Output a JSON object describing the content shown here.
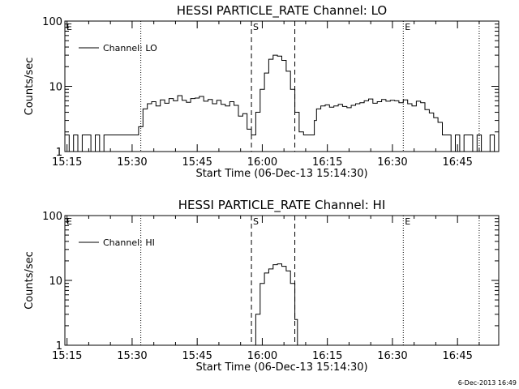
{
  "footer": {
    "timestamp": "6-Dec-2013 16:49"
  },
  "chart_data": [
    {
      "type": "line",
      "title": "HESSI PARTICLE_RATE Channel: LO",
      "xlabel": "Start Time (06-Dec-13 15:14:30)",
      "ylabel": "Counts/sec",
      "yscale": "log",
      "ylim": [
        1,
        100
      ],
      "xlim_minutes": [
        0,
        100
      ],
      "x_ticks": [
        "15:15",
        "15:30",
        "15:45",
        "16:00",
        "16:15",
        "16:30",
        "16:45"
      ],
      "y_ticks": [
        "1",
        "10",
        "100"
      ],
      "legend": "Channel: LO",
      "legend_position": "top-left",
      "markers": {
        "dashed": [
          {
            "label": "S",
            "x": "15:57:30"
          },
          {
            "label": "",
            "x": "16:07:30"
          }
        ],
        "dotted": [
          {
            "label": "",
            "x": "15:32:00"
          },
          {
            "label": "E",
            "x": "16:32:30"
          },
          {
            "label": "",
            "x": "16:50:00"
          }
        ],
        "edge_label": "E"
      },
      "series": [
        {
          "name": "Channel: LO",
          "x_minutes": [
            0,
            1,
            2,
            3,
            4,
            5,
            6,
            7,
            8,
            9,
            10,
            11,
            12,
            13,
            14,
            15,
            16,
            17,
            18,
            19,
            20,
            21,
            22,
            23,
            24,
            25,
            26,
            27,
            28,
            29,
            30,
            31,
            32,
            33,
            34,
            35,
            36,
            37,
            38,
            39,
            40,
            41,
            42,
            43,
            43.5,
            44,
            45,
            46,
            47,
            48,
            49,
            50,
            51,
            52,
            53,
            54,
            55,
            56,
            57,
            57.5,
            58,
            59,
            60,
            61,
            62,
            63,
            64,
            65,
            66,
            67,
            68,
            69,
            70,
            71,
            72,
            73,
            74,
            75,
            76,
            77,
            78,
            79,
            80,
            81,
            82,
            83,
            84,
            85,
            86,
            87,
            88,
            89,
            90,
            91,
            92,
            93,
            94,
            95,
            96,
            97,
            98,
            99,
            100
          ],
          "values": [
            1.8,
            1,
            1.8,
            1,
            1.8,
            1.8,
            1,
            1.8,
            1,
            1.8,
            1.8,
            1.8,
            1.8,
            1.8,
            1.8,
            1.8,
            1.8,
            2.4,
            4.5,
            5.4,
            5.8,
            5.0,
            6.2,
            5.5,
            6.5,
            6.0,
            7.2,
            6.1,
            5.7,
            6.5,
            6.6,
            7.0,
            5.9,
            6.3,
            5.4,
            6.1,
            5.3,
            5.0,
            5.8,
            5.1,
            3.5,
            3.8,
            2.2,
            1.8,
            1.8,
            4.0,
            9.0,
            16,
            26,
            30,
            29,
            25,
            17,
            9,
            4.0,
            2.0,
            1.8,
            1.8,
            1.8,
            3.0,
            4.5,
            5.0,
            5.2,
            4.8,
            5.0,
            5.3,
            4.9,
            4.7,
            5.1,
            5.4,
            5.6,
            6.0,
            6.4,
            5.5,
            5.8,
            6.3,
            5.9,
            6.1,
            6.0,
            5.6,
            6.2,
            5.4,
            5.0,
            5.9,
            5.6,
            4.4,
            3.9,
            3.3,
            2.8,
            1.8,
            1.8,
            1,
            1.8,
            1,
            1.8,
            1.8,
            1,
            1.8,
            1,
            1,
            1.8,
            1,
            1.8
          ]
        }
      ]
    },
    {
      "type": "line",
      "title": "HESSI PARTICLE_RATE Channel: HI",
      "xlabel": "Start Time (06-Dec-13 15:14:30)",
      "ylabel": "Counts/sec",
      "yscale": "log",
      "ylim": [
        1,
        100
      ],
      "xlim_minutes": [
        0,
        100
      ],
      "x_ticks": [
        "15:15",
        "15:30",
        "15:45",
        "16:00",
        "16:15",
        "16:30",
        "16:45"
      ],
      "y_ticks": [
        "1",
        "10",
        "100"
      ],
      "legend": "Channel: HI",
      "legend_position": "top-left",
      "markers": {
        "dashed": [
          {
            "label": "S",
            "x": "15:57:30"
          },
          {
            "label": "",
            "x": "16:07:30"
          }
        ],
        "dotted": [
          {
            "label": "",
            "x": "15:32:00"
          },
          {
            "label": "E",
            "x": "16:32:30"
          },
          {
            "label": "",
            "x": "16:50:00"
          }
        ],
        "edge_label": "E"
      },
      "series": [
        {
          "name": "Channel: HI",
          "x_minutes": [
            43.3,
            44,
            45,
            46,
            47,
            48,
            49,
            50,
            51,
            52,
            53,
            53.6
          ],
          "values": [
            0.9,
            3.0,
            9.0,
            13,
            15,
            17.5,
            18,
            16.5,
            14,
            9,
            2.5,
            0.9
          ]
        }
      ]
    }
  ]
}
